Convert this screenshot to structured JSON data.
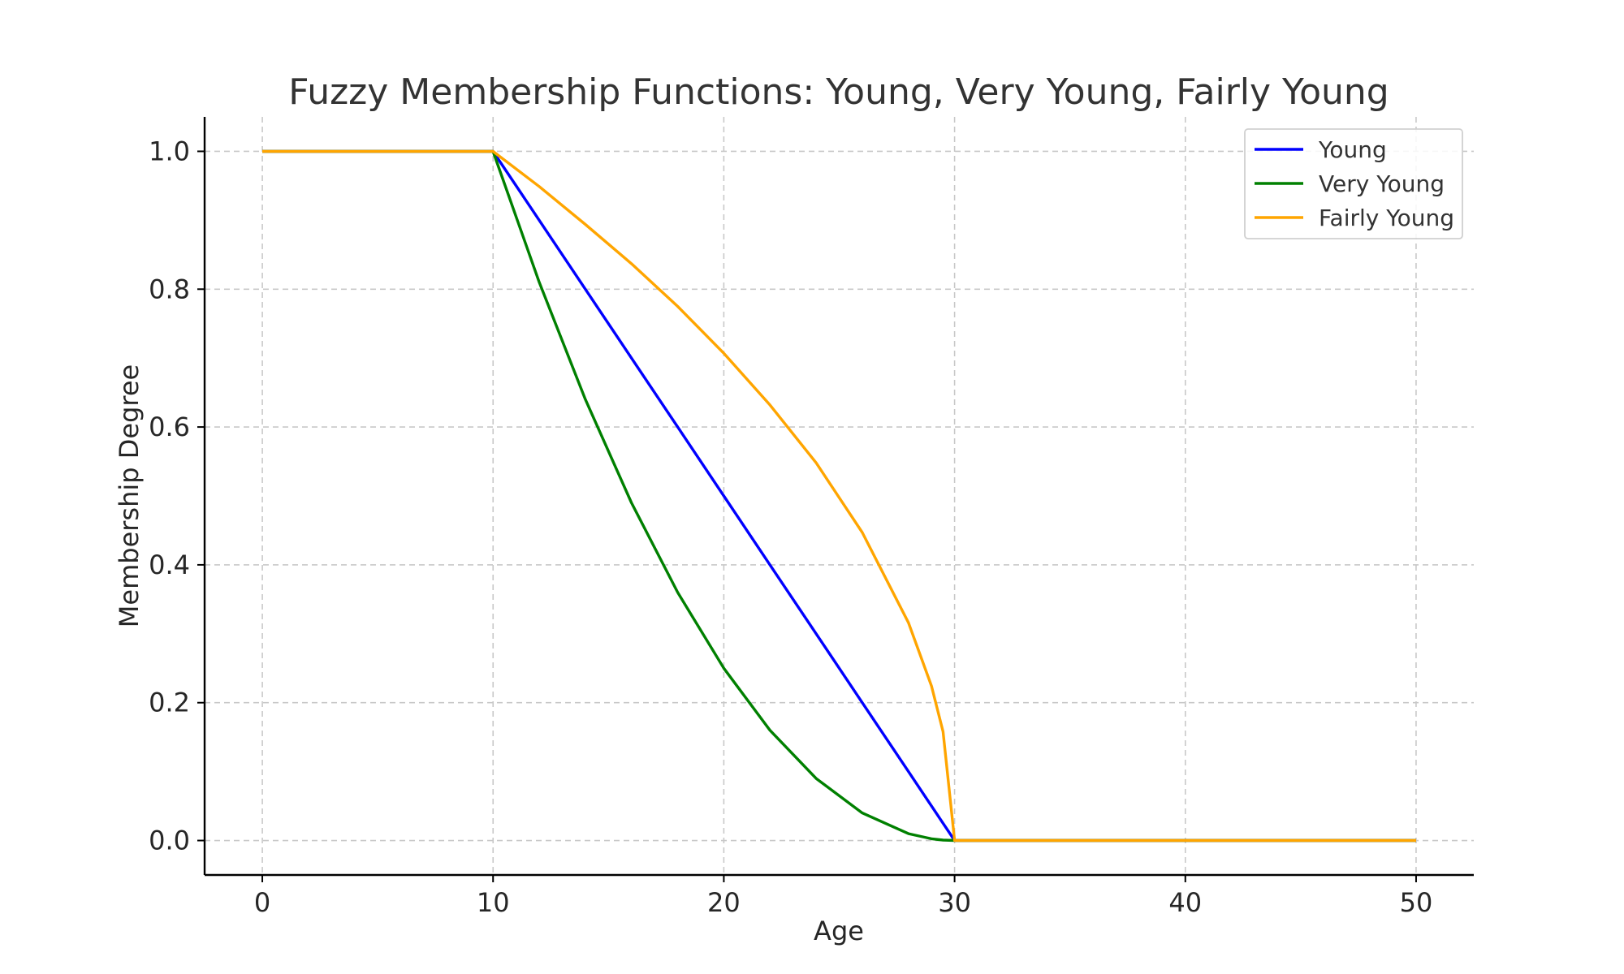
{
  "chart_data": {
    "type": "line",
    "title": "Fuzzy Membership Functions: Young, Very Young, Fairly Young",
    "xlabel": "Age",
    "ylabel": "Membership Degree",
    "xlim": [
      -2.5,
      52.5
    ],
    "ylim": [
      -0.05,
      1.05
    ],
    "x_ticks": [
      "0",
      "10",
      "20",
      "30",
      "40",
      "50"
    ],
    "y_ticks": [
      "0.0",
      "0.2",
      "0.4",
      "0.6",
      "0.8",
      "1.0"
    ],
    "grid": true,
    "legend_position": "top-right",
    "x": [
      0,
      10,
      12,
      14,
      16,
      18,
      20,
      22,
      24,
      26,
      28,
      29,
      29.5,
      30,
      40,
      50
    ],
    "series": [
      {
        "name": "Young",
        "color": "#0000ff",
        "values": [
          1.0,
          1.0,
          0.9,
          0.8,
          0.7,
          0.6,
          0.5,
          0.4,
          0.3,
          0.2,
          0.1,
          0.05,
          0.025,
          0.0,
          0.0,
          0.0
        ]
      },
      {
        "name": "Very Young",
        "color": "#008000",
        "values": [
          1.0,
          1.0,
          0.81,
          0.64,
          0.49,
          0.36,
          0.25,
          0.16,
          0.09,
          0.04,
          0.01,
          0.0025,
          0.000625,
          0.0,
          0.0,
          0.0
        ]
      },
      {
        "name": "Fairly Young",
        "color": "#ffa500",
        "values": [
          1.0,
          1.0,
          0.949,
          0.894,
          0.837,
          0.775,
          0.707,
          0.632,
          0.548,
          0.447,
          0.316,
          0.224,
          0.158,
          0.0,
          0.0,
          0.0
        ]
      }
    ]
  }
}
